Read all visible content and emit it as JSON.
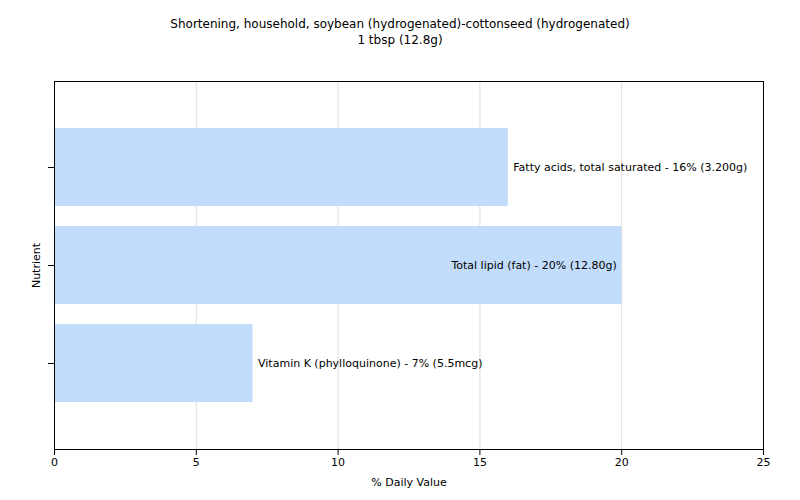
{
  "chart_data": {
    "type": "bar",
    "orientation": "horizontal",
    "title": "Shortening, household, soybean (hydrogenated)-cottonseed (hydrogenated)",
    "subtitle": "1 tbsp (12.8g)",
    "categories": [
      "Fatty acids, total saturated - 16% (3.200g)",
      "Total lipid (fat) - 20% (12.80g)",
      "Vitamin K (phylloquinone) - 7% (5.5mcg)"
    ],
    "values": [
      16,
      20,
      7
    ],
    "color": "#c2dcfc",
    "xlabel": "% Daily Value",
    "ylabel": "Nutrient",
    "xlim": [
      0,
      25
    ],
    "xticks": [
      0,
      5,
      10,
      15,
      20,
      25
    ],
    "grid": true,
    "tick_labels": "x"
  }
}
